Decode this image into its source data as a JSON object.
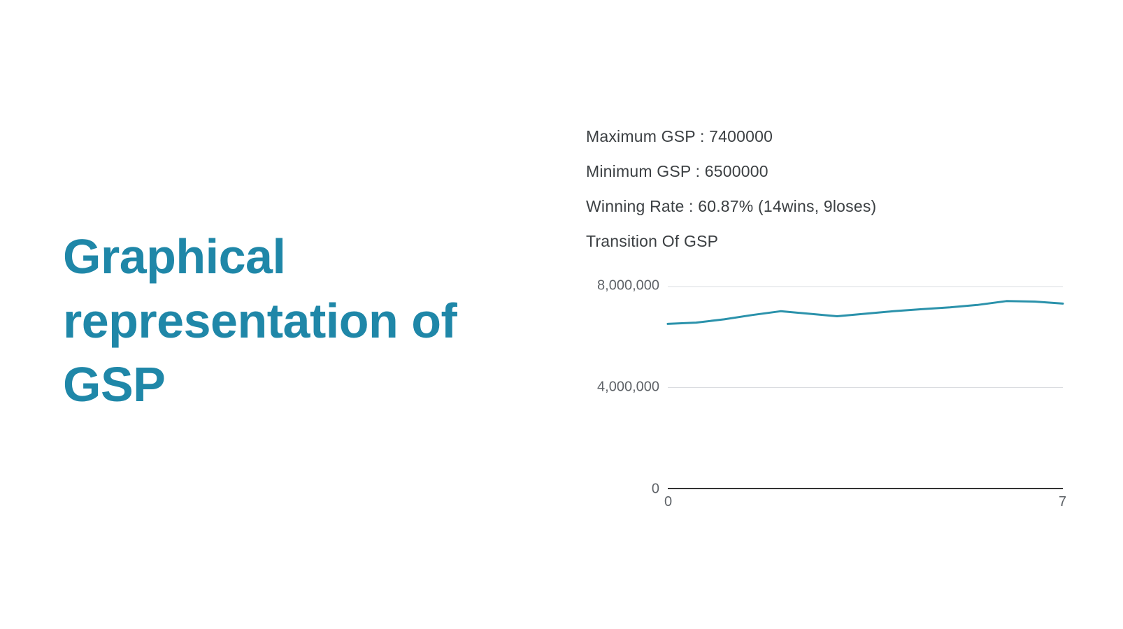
{
  "heading": {
    "text": "Graphical representation of GSP",
    "color": "#1f87a8"
  },
  "stats": {
    "lines": [
      "Maximum GSP : 7400000",
      "Minimum GSP : 6500000",
      "Winning Rate : 60.87% (14wins, 9loses)"
    ],
    "maximum_gsp": 7400000,
    "minimum_gsp": 6500000,
    "winning_rate_percent": 60.87,
    "wins": 14,
    "loses": 9
  },
  "chart_data": {
    "type": "line",
    "title": "Transition Of GSP",
    "x": [
      0,
      0.5,
      1,
      1.5,
      2,
      2.5,
      3,
      3.5,
      4,
      4.5,
      5,
      5.5,
      6,
      6.5,
      7
    ],
    "values": [
      6500000,
      6550000,
      6680000,
      6850000,
      7000000,
      6900000,
      6800000,
      6900000,
      7000000,
      7080000,
      7150000,
      7250000,
      7400000,
      7380000,
      7300000
    ],
    "xlabel": "",
    "ylabel": "",
    "xlim": [
      0,
      7
    ],
    "ylim": [
      0,
      8000000
    ],
    "grid": true,
    "legend": "none",
    "yticks": [
      {
        "value": 8000000,
        "label": "8,000,000"
      },
      {
        "value": 4000000,
        "label": "4,000,000"
      },
      {
        "value": 0,
        "label": "0"
      }
    ],
    "xticks": [
      {
        "value": 0,
        "label": "0"
      },
      {
        "value": 7,
        "label": "7"
      }
    ],
    "line_color": "#2b92ab",
    "grid_color": "#dadce0",
    "axis_color": "#333333"
  }
}
